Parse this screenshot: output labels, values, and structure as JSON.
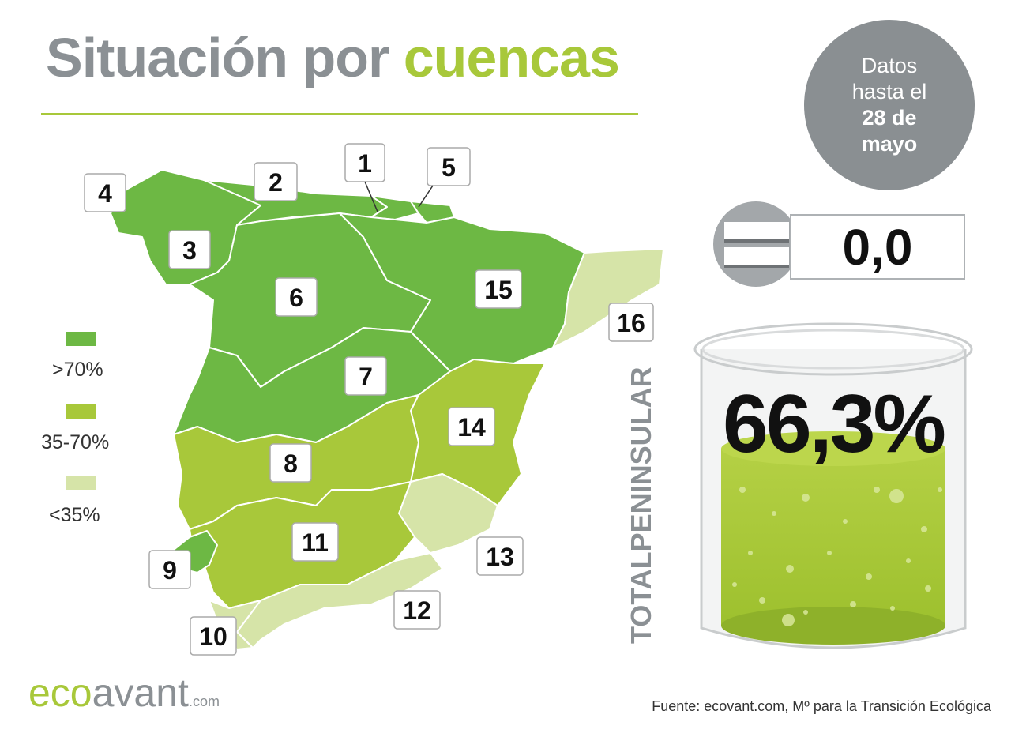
{
  "title": {
    "part1": "Situación por",
    "part2": "cuencas"
  },
  "date_badge": {
    "line1": "Datos",
    "line2": "hasta el",
    "line3": "28 de",
    "line4": "mayo"
  },
  "change": {
    "value": "0,0",
    "icon": "equal-icon"
  },
  "legend": [
    {
      "label": ">70%",
      "color": "#6db844"
    },
    {
      "label": "35-70%",
      "color": "#a8c83a"
    },
    {
      "label": "<35%",
      "color": "#d6e4a8"
    }
  ],
  "total": {
    "label": "TOTALPENINSULAR",
    "value": "66,3%",
    "fill_fraction": 0.663
  },
  "basins": [
    {
      "id": "1",
      "label": "1"
    },
    {
      "id": "2",
      "label": "2"
    },
    {
      "id": "3",
      "label": "3"
    },
    {
      "id": "4",
      "label": "4"
    },
    {
      "id": "5",
      "label": "5"
    },
    {
      "id": "6",
      "label": "6"
    },
    {
      "id": "7",
      "label": "7"
    },
    {
      "id": "8",
      "label": "8"
    },
    {
      "id": "9",
      "label": "9"
    },
    {
      "id": "10",
      "label": "10"
    },
    {
      "id": "11",
      "label": "11"
    },
    {
      "id": "12",
      "label": "12"
    },
    {
      "id": "13",
      "label": "13"
    },
    {
      "id": "14",
      "label": "14"
    },
    {
      "id": "15",
      "label": "15"
    },
    {
      "id": "16",
      "label": "16"
    }
  ],
  "logo": {
    "eco": "eco",
    "avant": "avant",
    "com": ".com"
  },
  "source": "Fuente: ecovant.com, Mº para la Transición Ecológica"
}
